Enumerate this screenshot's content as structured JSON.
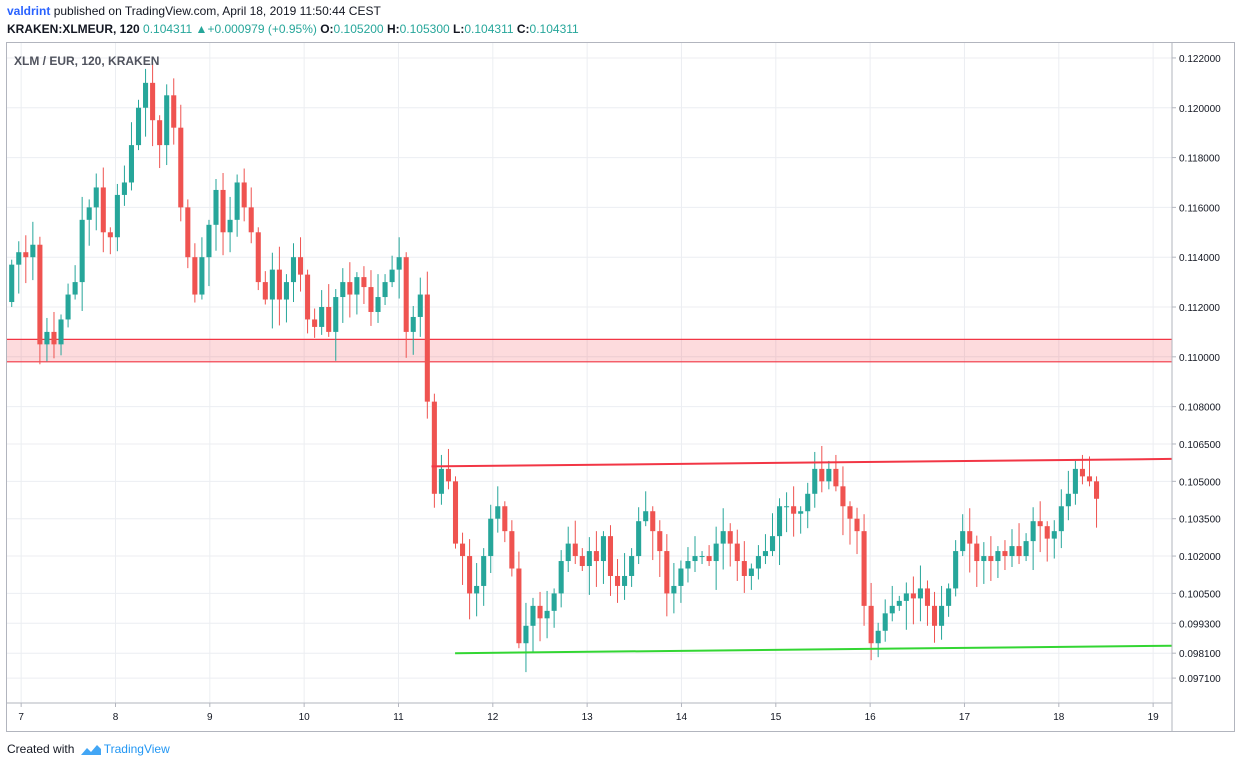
{
  "header": {
    "user": "valdrint",
    "published_text": "published on TradingView.com, April 18, 2019 11:50:44 CEST",
    "symbol": "KRAKEN:XLMEUR, 120",
    "last": "0.104311",
    "change": "+0.000979 (+0.95%)",
    "o_label": "O:",
    "o_value": "0.105200",
    "h_label": "H:",
    "h_value": "0.105300",
    "l_label": "L:",
    "l_value": "0.104311",
    "c_label": "C:",
    "c_value": "0.104311"
  },
  "footer": {
    "created_with": "Created with",
    "brand": "TradingView"
  },
  "colors": {
    "up": "#26a69a",
    "down": "#ef5350",
    "zone": "#f23645",
    "support": "#33d633",
    "resistance": "#f23645"
  },
  "chart_data": {
    "type": "candlestick",
    "title": "XLM / EUR, 120, KRAKEN",
    "ylim": [
      0.0961,
      0.1226
    ],
    "xlim": [
      6.85,
      19.2
    ],
    "y_ticks": [
      "0.122000",
      "0.120000",
      "0.118000",
      "0.116000",
      "0.114000",
      "0.112000",
      "0.110000",
      "0.108000",
      "0.106500",
      "0.105000",
      "0.103500",
      "0.102000",
      "0.100500",
      "0.099300",
      "0.098100",
      "0.097100"
    ],
    "x_ticks": [
      "7",
      "8",
      "9",
      "10",
      "11",
      "12",
      "13",
      "14",
      "15",
      "16",
      "17",
      "18",
      "19"
    ],
    "support_zone": {
      "low": 0.1098,
      "high": 0.1107
    },
    "resistance_line": {
      "from": [
        11.35,
        0.1056
      ],
      "to": [
        19.2,
        0.1059
      ]
    },
    "support_line": {
      "from": [
        11.6,
        0.0981
      ],
      "to": [
        19.2,
        0.0984
      ]
    },
    "closes": [
      0.1137,
      0.1142,
      0.114,
      0.1145,
      0.1105,
      0.111,
      0.1105,
      0.1115,
      0.1125,
      0.113,
      0.1155,
      0.116,
      0.1168,
      0.115,
      0.1148,
      0.1165,
      0.117,
      0.1185,
      0.12,
      0.121,
      0.1195,
      0.1185,
      0.1205,
      0.1192,
      0.116,
      0.114,
      0.1125,
      0.114,
      0.1153,
      0.1167,
      0.115,
      0.1155,
      0.117,
      0.116,
      0.115,
      0.113,
      0.1123,
      0.1135,
      0.1123,
      0.113,
      0.114,
      0.1133,
      0.1115,
      0.1112,
      0.112,
      0.111,
      0.1124,
      0.113,
      0.1125,
      0.1132,
      0.1128,
      0.1118,
      0.1124,
      0.113,
      0.1135,
      0.114,
      0.111,
      0.1116,
      0.1125,
      0.1082,
      0.1045,
      0.1055,
      0.105,
      0.1025,
      0.102,
      0.1005,
      0.1008,
      0.102,
      0.1035,
      0.104,
      0.103,
      0.1015,
      0.0985,
      0.0992,
      0.1,
      0.0995,
      0.0998,
      0.1005,
      0.1018,
      0.1025,
      0.102,
      0.1016,
      0.1022,
      0.1018,
      0.1028,
      0.1012,
      0.1008,
      0.1012,
      0.102,
      0.1034,
      0.1038,
      0.103,
      0.1022,
      0.1005,
      0.1008,
      0.1015,
      0.1018,
      0.102,
      0.102,
      0.1018,
      0.1025,
      0.103,
      0.1025,
      0.1018,
      0.1012,
      0.1015,
      0.102,
      0.1022,
      0.1028,
      0.104,
      0.104,
      0.1037,
      0.1038,
      0.1045,
      0.1055,
      0.105,
      0.1055,
      0.1048,
      0.104,
      0.1035,
      0.103,
      0.1,
      0.0985,
      0.099,
      0.0997,
      0.1,
      0.1002,
      0.1005,
      0.1003,
      0.1007,
      0.1,
      0.0992,
      0.1,
      0.1007,
      0.1022,
      0.103,
      0.1025,
      0.1018,
      0.102,
      0.1018,
      0.1022,
      0.102,
      0.1024,
      0.102,
      0.1026,
      0.1034,
      0.1032,
      0.1027,
      0.103,
      0.104,
      0.1045,
      0.1055,
      0.1052,
      0.105,
      0.1043
    ]
  }
}
